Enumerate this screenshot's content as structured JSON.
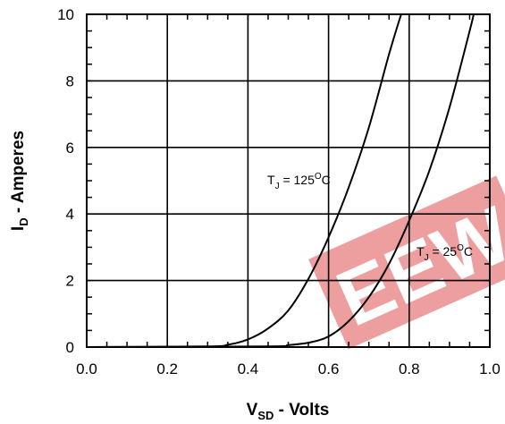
{
  "chart_data": {
    "type": "line",
    "xlabel": {
      "main": "V",
      "sub": "SD",
      "rest": " -  Volts"
    },
    "ylabel": {
      "main": "I",
      "sub": "D",
      "rest": " - Amperes"
    },
    "xlim": [
      0.0,
      1.0
    ],
    "ylim": [
      0,
      10
    ],
    "x_ticks": [
      "0.0",
      "0.2",
      "0.4",
      "0.6",
      "0.8",
      "1.0"
    ],
    "y_ticks": [
      "0",
      "2",
      "4",
      "6",
      "8",
      "10"
    ],
    "grid": true,
    "series": [
      {
        "x": [
          0.0,
          0.3,
          0.35,
          0.4,
          0.45,
          0.5,
          0.55,
          0.6,
          0.65,
          0.7,
          0.75,
          0.78
        ],
        "y": [
          0.0,
          0.02,
          0.07,
          0.23,
          0.56,
          1.1,
          2.05,
          3.3,
          4.8,
          6.6,
          8.8,
          10.0
        ]
      },
      {
        "x": [
          0.0,
          0.45,
          0.5,
          0.55,
          0.6,
          0.65,
          0.7,
          0.75,
          0.8,
          0.85,
          0.9,
          0.95,
          0.96
        ],
        "y": [
          0.0,
          0.02,
          0.06,
          0.13,
          0.32,
          0.78,
          1.5,
          2.5,
          3.8,
          5.3,
          7.2,
          9.5,
          10.0
        ]
      }
    ],
    "annotations": [
      {
        "main": "T",
        "sub": "J",
        "text": " = 125",
        "sup": "O",
        "unit": "C"
      },
      {
        "main": "T",
        "sub": "J",
        "text": " = 25",
        "sup": "O",
        "unit": "C"
      }
    ]
  },
  "watermark": {
    "text": "EEW",
    "color": "#e05050"
  }
}
